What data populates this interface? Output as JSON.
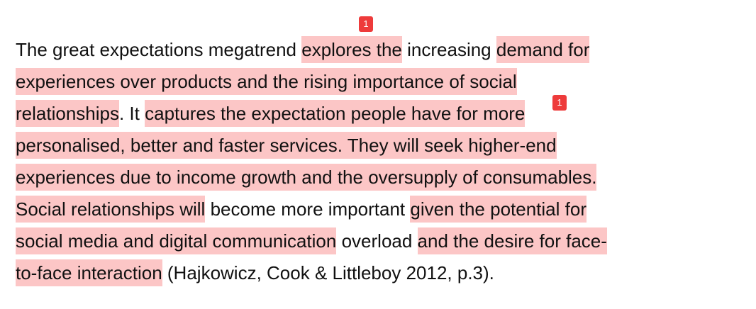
{
  "lines": [
    {
      "segments": [
        {
          "text": "The great expectations megatrend ",
          "highlight": false
        },
        {
          "text": "explores the",
          "highlight": true
        },
        {
          "text": " increasing ",
          "highlight": false
        },
        {
          "text": "demand for",
          "highlight": true
        }
      ]
    },
    {
      "segments": [
        {
          "text": "experiences over products and the rising importance of social",
          "highlight": true
        }
      ]
    },
    {
      "segments": [
        {
          "text": "relationships",
          "highlight": true
        },
        {
          "text": ". It ",
          "highlight": false
        },
        {
          "text": "captures the expectation people have for more",
          "highlight": true
        }
      ]
    },
    {
      "segments": [
        {
          "text": "personalised, better and faster services. They will seek higher-end",
          "highlight": true
        }
      ]
    },
    {
      "segments": [
        {
          "text": "experiences due to income growth and the oversupply of consumables.",
          "highlight": true
        }
      ]
    },
    {
      "segments": [
        {
          "text": "Social relationships will",
          "highlight": true
        },
        {
          "text": " become more important ",
          "highlight": false
        },
        {
          "text": "given the potential for",
          "highlight": true
        }
      ]
    },
    {
      "segments": [
        {
          "text": "social media and digital communication",
          "highlight": true
        },
        {
          "text": " overload ",
          "highlight": false
        },
        {
          "text": "and the desire for face-",
          "highlight": true
        }
      ]
    },
    {
      "segments": [
        {
          "text": "to-face interaction",
          "highlight": true
        },
        {
          "text": " (Hajkowicz, Cook & Littleboy 2012, p.3).",
          "highlight": false
        }
      ]
    }
  ],
  "comments": [
    {
      "label": "1"
    },
    {
      "label": "1"
    }
  ]
}
